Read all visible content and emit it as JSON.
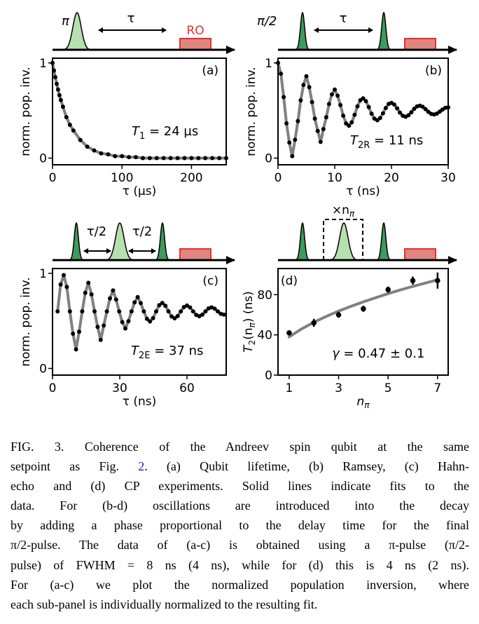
{
  "figure": {
    "pulses": {
      "a": {
        "pulse_label": "π",
        "delay_label": "τ",
        "readout_label": "RO"
      },
      "b": {
        "pulse_label": "π/2",
        "delay_label": "τ"
      },
      "c": {
        "delay_label_1": "τ/2",
        "delay_label_2": "τ/2"
      },
      "d": {
        "repeat_label": "×n",
        "repeat_sub": "π"
      }
    },
    "colors": {
      "pi_pulse": "#b7e0b0",
      "half_pi_pulse": "#3f9a5c",
      "readout_fill": "#e08580",
      "readout_edge": "#e8302a",
      "fit_line": "#808080",
      "data": "#000000"
    }
  },
  "chart_data": [
    {
      "panel": "(a)",
      "type": "scatter",
      "xlabel": "τ (µs)",
      "ylabel": "norm. pop. inv.",
      "xlim": [
        0,
        250
      ],
      "ylim": [
        -0.07,
        1.05
      ],
      "xticks": [
        "0",
        "100",
        "200"
      ],
      "xtick_values": [
        0,
        100,
        200
      ],
      "yticks": [
        "0",
        "1"
      ],
      "ytick_values": [
        0,
        1
      ],
      "annotation": {
        "symbol": "T",
        "sub": "1",
        "value": " = 24 µs"
      },
      "x": [
        0,
        2,
        4,
        6,
        8,
        10,
        12,
        15,
        20,
        25,
        30,
        40,
        50,
        60,
        70,
        80,
        90,
        100,
        110,
        120,
        130,
        140,
        150,
        160,
        170,
        180,
        190,
        200,
        210,
        220,
        230,
        240,
        250
      ],
      "y": [
        1,
        0.92,
        0.85,
        0.78,
        0.72,
        0.66,
        0.61,
        0.54,
        0.43,
        0.35,
        0.29,
        0.19,
        0.12,
        0.08,
        0.05,
        0.04,
        0.02,
        0.02,
        0.01,
        0.01,
        0,
        0,
        0,
        0,
        0,
        0,
        0,
        0,
        0,
        0,
        0,
        0,
        0
      ]
    },
    {
      "panel": "(b)",
      "type": "scatter",
      "xlabel": "τ (ns)",
      "ylabel": "norm. pop. inv.",
      "xlim": [
        0,
        30
      ],
      "ylim": [
        -0.07,
        1.05
      ],
      "xticks": [
        "0",
        "10",
        "20",
        "30"
      ],
      "xtick_values": [
        0,
        10,
        20,
        30
      ],
      "yticks": [
        "0",
        "1"
      ],
      "ytick_values": [
        0,
        1
      ],
      "annotation": {
        "symbol": "T",
        "sub": "2R",
        "value": " = 11 ns"
      },
      "x": [
        0,
        0.5,
        1,
        1.5,
        2,
        2.5,
        3,
        3.5,
        4,
        4.5,
        5,
        5.5,
        6,
        6.5,
        7,
        7.5,
        8,
        8.5,
        9,
        9.5,
        10,
        10.5,
        11,
        11.5,
        12,
        12.5,
        13,
        13.5,
        14,
        14.5,
        15,
        15.5,
        16,
        16.5,
        17,
        17.5,
        18,
        18.5,
        19,
        19.5,
        20,
        20.5,
        21,
        21.5,
        22,
        22.5,
        23,
        23.5,
        24,
        24.5,
        25,
        25.5,
        26,
        26.5,
        27,
        27.5,
        28,
        28.5,
        29,
        29.5,
        30
      ],
      "y": [
        1.0,
        0.887,
        0.641,
        0.365,
        0.163,
        0.02,
        0.192,
        0.388,
        0.607,
        0.769,
        0.86,
        0.745,
        0.589,
        0.414,
        0.286,
        0.17,
        0.305,
        0.429,
        0.568,
        0.67,
        0.72,
        0.656,
        0.557,
        0.446,
        0.364,
        0.34,
        0.376,
        0.455,
        0.543,
        0.608,
        0.628,
        0.599,
        0.536,
        0.466,
        0.414,
        0.398,
        0.421,
        0.471,
        0.527,
        0.569,
        0.581,
        0.563,
        0.523,
        0.478,
        0.445,
        0.435,
        0.45,
        0.482,
        0.517,
        0.544,
        0.551,
        0.54,
        0.515,
        0.486,
        0.465,
        0.459,
        0.468,
        0.488,
        0.511,
        0.528,
        0.533
      ]
    },
    {
      "panel": "(c)",
      "type": "scatter",
      "xlabel": "τ (ns)",
      "ylabel": "norm. pop. inv.",
      "xlim": [
        0,
        77.5
      ],
      "ylim": [
        -0.07,
        1.05
      ],
      "xticks": [
        "0",
        "30",
        "60"
      ],
      "xtick_values": [
        0,
        30,
        60
      ],
      "yticks": [
        "0",
        "1"
      ],
      "ytick_values": [
        0,
        1
      ],
      "annotation": {
        "symbol": "T",
        "sub": "2E",
        "value": " = 37 ns"
      },
      "x": [
        2.25,
        3.63,
        5,
        6.38,
        7.75,
        9.13,
        10.5,
        11.88,
        13.25,
        14.63,
        16,
        17.38,
        18.75,
        20.13,
        21.5,
        22.88,
        24.25,
        25.63,
        27,
        28.38,
        29.75,
        31.13,
        32.5,
        33.88,
        35.25,
        36.63,
        38,
        39.38,
        40.75,
        42.13,
        43.5,
        44.88,
        46.25,
        47.63,
        49,
        50.38,
        51.75,
        53.13,
        54.5,
        55.88,
        57.25,
        58.63,
        60,
        61.38,
        62.75,
        64.13,
        65.5,
        66.88,
        68.25,
        69.63,
        71,
        72.38,
        73.75,
        75.13,
        76.5
      ],
      "y": [
        0.6,
        0.882,
        0.981,
        0.857,
        0.6,
        0.365,
        0.2,
        0.386,
        0.6,
        0.795,
        0.9,
        0.778,
        0.6,
        0.437,
        0.3,
        0.452,
        0.6,
        0.736,
        0.82,
        0.724,
        0.6,
        0.487,
        0.42,
        0.497,
        0.6,
        0.694,
        0.75,
        0.686,
        0.6,
        0.522,
        0.494,
        0.529,
        0.6,
        0.665,
        0.688,
        0.659,
        0.6,
        0.546,
        0.527,
        0.551,
        0.6,
        0.645,
        0.661,
        0.641,
        0.6,
        0.563,
        0.549,
        0.566,
        0.6,
        0.631,
        0.642,
        0.628,
        0.6,
        0.574,
        0.565
      ]
    },
    {
      "panel": "(d)",
      "type": "scatter",
      "xlabel": {
        "symbol": "n",
        "sub": "π"
      },
      "ylabel": {
        "symbol": "T",
        "sub": "2",
        "mid": "(n",
        "midsub": "π",
        "tail": ")  (ns)"
      },
      "xlim": [
        0.55,
        7.43
      ],
      "ylim": [
        0,
        106
      ],
      "xticks": [
        "1",
        "3",
        "5",
        "7"
      ],
      "xtick_values": [
        1,
        3,
        5,
        7
      ],
      "yticks": [
        "0",
        "40",
        "80"
      ],
      "ytick_values": [
        0,
        40,
        80
      ],
      "annotation": {
        "symbol": "γ",
        "value": " = 0.47 ± 0.1"
      },
      "x": [
        1,
        2,
        3,
        4,
        5,
        6,
        7
      ],
      "y": [
        42,
        52,
        60,
        66,
        85,
        94,
        94
      ],
      "yerr": [
        2,
        4,
        3,
        3,
        3,
        4,
        8
      ],
      "fit": {
        "x": [
          1,
          1.5,
          2,
          2.5,
          3,
          3.5,
          4,
          4.5,
          5,
          5.5,
          6,
          6.5,
          7
        ],
        "y": [
          38,
          45.9,
          52.6,
          58.4,
          63.7,
          68.4,
          72.9,
          77.0,
          81.0,
          84.7,
          88.2,
          91.5,
          94.8
        ]
      }
    }
  ],
  "caption": {
    "lines": [
      "FIG. 3.  Coherence of the Andreev spin qubit at the same",
      "",
      "echo and (d) CP experiments. Solid lines indicate fits to the",
      "data.  For (b-d) oscillations are introduced into the decay",
      "by adding a phase proportional to the delay time for the final",
      "π/2-pulse. The data of (a-c) is obtained using a π-pulse (π/2-",
      "pulse) of FWHM = 8 ns (4 ns), while for (d) this is 4 ns (2 ns).",
      "For (a-c) we plot the normalized population inversion, where",
      "each sub-panel is individually normalized to the resulting fit."
    ],
    "line2_pre": "setpoint as Fig. ",
    "line2_ref": "2",
    "line2_post": ". (a) Qubit lifetime, (b) Ramsey, (c) Hahn-"
  }
}
